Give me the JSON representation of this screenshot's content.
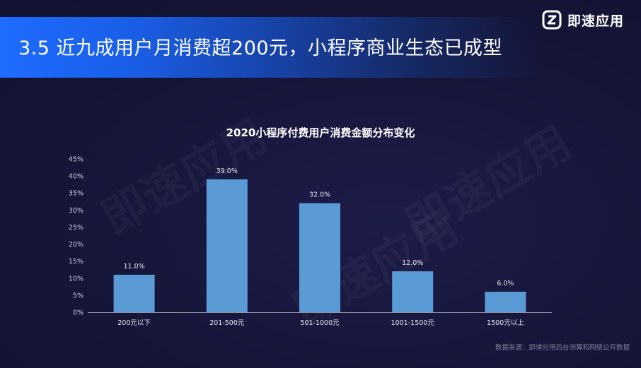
{
  "header": {
    "title": "3.5 近九成用户月消费超200元，小程序商业生态已成型",
    "brand_name": "即速应用",
    "logo_icon": "brand-logo-icon"
  },
  "watermark": {
    "text": "即速应用"
  },
  "footer": {
    "source": "数据来源：即速应用后台测算和网络公开数据"
  },
  "colors": {
    "bar": "#5b9bd5",
    "accent": "#1f6cff",
    "background": "#16163a"
  },
  "chart_data": {
    "type": "bar",
    "title": "2020小程序付费用户消费金额分布变化",
    "xlabel": "",
    "ylabel": "",
    "categories": [
      "200元以下",
      "201-500元",
      "501-1000元",
      "1001-1500元",
      "1500元以上"
    ],
    "values": [
      11.0,
      39.0,
      32.0,
      12.0,
      6.0
    ],
    "data_labels": [
      "11.0%",
      "39.0%",
      "32.0%",
      "12.0%",
      "6.0%"
    ],
    "ylim": [
      0,
      45
    ],
    "yticks": [
      "0%",
      "5%",
      "10%",
      "15%",
      "20%",
      "25%",
      "30%",
      "35%",
      "40%",
      "45%"
    ],
    "grid": false,
    "legend": "none"
  }
}
